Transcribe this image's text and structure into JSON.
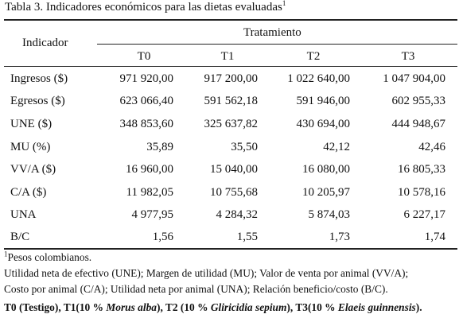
{
  "table": {
    "caption_main": "Tabla 3. Indicadores económicos para las dietas evaluadas",
    "caption_sup": "1",
    "header_indicator": "Indicador",
    "header_treatment": "Tratamiento",
    "columns": [
      "T0",
      "T1",
      "T2",
      "T3"
    ],
    "rows": [
      {
        "label": "Ingresos ($)",
        "values": [
          "971 920,00",
          "917 200,00",
          "1 022 640,00",
          "1 047 904,00"
        ]
      },
      {
        "label": "Egresos ($)",
        "values": [
          "623 066,40",
          "591 562,18",
          "591 946,00",
          "602 955,33"
        ]
      },
      {
        "label": "UNE ($)",
        "values": [
          "348 853,60",
          "325 637,82",
          "430 694,00",
          "444 948,67"
        ]
      },
      {
        "label": "MU (%)",
        "values": [
          "35,89",
          "35,50",
          "42,12",
          "42,46"
        ]
      },
      {
        "label": "VV/A ($)",
        "values": [
          "16 960,00",
          "15 040,00",
          "16 080,00",
          "16 805,33"
        ]
      },
      {
        "label": "C/A ($)",
        "values": [
          "11 982,05",
          "10 755,68",
          "10 205,97",
          "10 578,16"
        ]
      },
      {
        "label": "UNA",
        "values": [
          "4 977,95",
          "4 284,32",
          "5 874,03",
          "6 227,17"
        ]
      },
      {
        "label": "B/C",
        "values": [
          "1,56",
          "1,55",
          "1,73",
          "1,74"
        ]
      }
    ]
  },
  "footnotes": {
    "fn1_sup": "1",
    "fn1_text": "Pesos colombianos.",
    "abbrev_line1": "Utilidad neta de efectivo (UNE); Margen de utilidad (MU); Valor de venta por animal (VV/A);",
    "abbrev_line2": "Costo por animal (C/A); Utilidad neta por animal (UNA); Relación beneficio/costo (B/C).",
    "treat": {
      "t0": "T0 (Testigo), T1(10 % ",
      "t1_species": "Morus alba",
      "t2_prefix": "), T2 (10 % ",
      "t2_species": "Gliricidia sepium",
      "t3_prefix": "), T3(10 % ",
      "t3_species": "Elaeis guinnensis",
      "end": ")."
    }
  }
}
